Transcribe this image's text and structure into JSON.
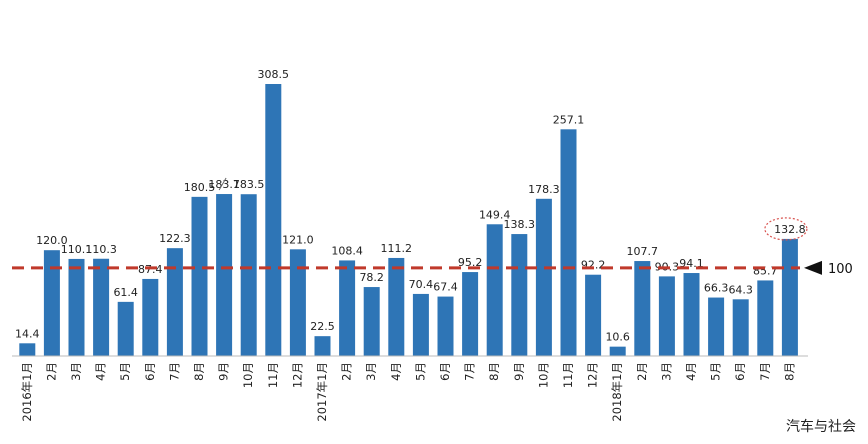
{
  "chart_data": {
    "type": "bar",
    "categories": [
      "2016年1月",
      "2月",
      "3月",
      "4月",
      "5月",
      "6月",
      "7月",
      "8月",
      "9月",
      "10月",
      "11月",
      "12月",
      "2017年1月",
      "2月",
      "3月",
      "4月",
      "5月",
      "6月",
      "7月",
      "8月",
      "9月",
      "10月",
      "11月",
      "12月",
      "2018年1月",
      "2月",
      "3月",
      "4月",
      "5月",
      "6月",
      "7月",
      "8月"
    ],
    "values": [
      14.4,
      120.0,
      110.1,
      110.3,
      61.4,
      87.4,
      122.3,
      180.5,
      183.7,
      183.5,
      308.5,
      121.0,
      22.5,
      108.4,
      78.2,
      111.2,
      70.4,
      67.4,
      95.2,
      149.4,
      138.3,
      178.3,
      257.1,
      92.2,
      10.6,
      107.7,
      90.3,
      94.1,
      66.3,
      64.3,
      85.7,
      132.8
    ],
    "value_labels": [
      "14.4",
      "120.0",
      "110.1",
      "110.3",
      "61.4",
      "87.4",
      "122.3",
      "180.5",
      "183.7",
      "183.5",
      "308.5",
      "121.0",
      "22.5",
      "108.4",
      "78.2",
      "111.2",
      "70.4",
      "67.4",
      "95.2",
      "149.4",
      "138.3",
      "178.3",
      "257.1",
      "92.2",
      "10.6",
      "107.7",
      "90.3",
      "94.1",
      "66.3",
      "64.3",
      "85.7",
      "132.8"
    ],
    "reference_line": {
      "value": 100,
      "label": "100",
      "color": "#c0392b",
      "style": "dashed"
    },
    "highlighted_value": "132.8",
    "bar_color": "#2e75b6",
    "title": "",
    "xlabel": "",
    "ylabel": "",
    "ylim": [
      0,
      320
    ]
  },
  "watermark": "汽车与社会"
}
